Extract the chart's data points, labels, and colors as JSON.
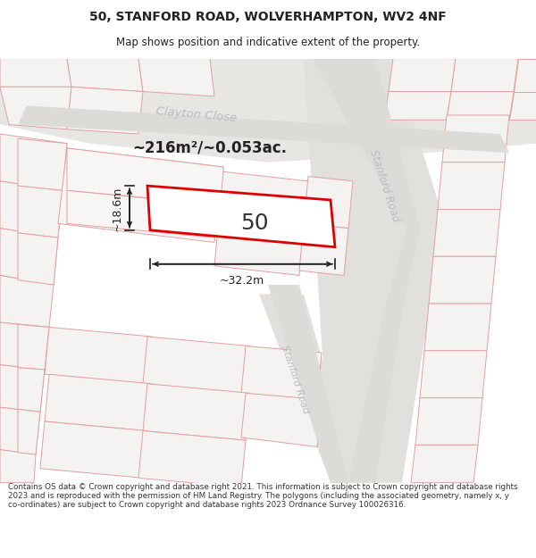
{
  "title_line1": "50, STANFORD ROAD, WOLVERHAMPTON, WV2 4NF",
  "title_line2": "Map shows position and indicative extent of the property.",
  "area_text": "~216m²/~0.053ac.",
  "property_number": "50",
  "dim_width": "~32.2m",
  "dim_height": "~18.6m",
  "footer_text": "Contains OS data © Crown copyright and database right 2021. This information is subject to Crown copyright and database rights 2023 and is reproduced with the permission of HM Land Registry. The polygons (including the associated geometry, namely x, y co-ordinates) are subject to Crown copyright and database rights 2023 Ordnance Survey 100026316.",
  "map_bg": "#f5f4f2",
  "road_color": "#e0dedd",
  "road_center_color": "#d8d6d4",
  "parcel_fill": "#f9f8f7",
  "parcel_fill_dark": "#eeecea",
  "parcel_stroke": "#e8aaaa",
  "parcel_stroke_dark": "#c8a8a8",
  "plot_fill": "#ffffff",
  "plot_stroke": "#dd0000",
  "label_road": "#aaaaaa",
  "label_area": "#222222",
  "dim_color": "#222222",
  "title_color": "#222222",
  "footer_color": "#333333"
}
